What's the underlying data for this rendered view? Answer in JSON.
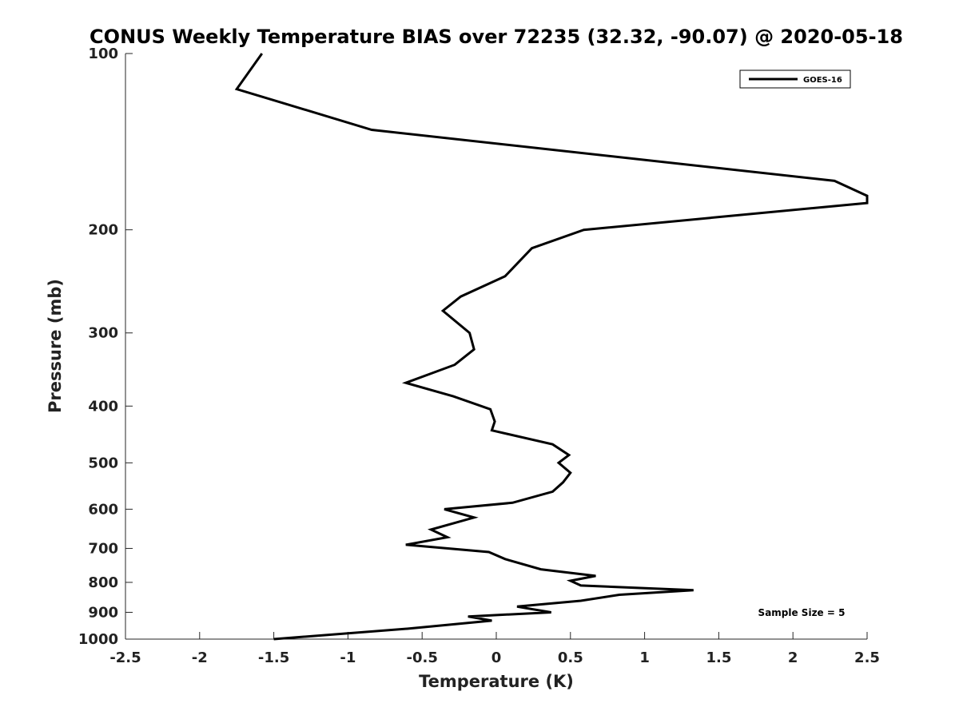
{
  "chart_data": {
    "type": "line",
    "title": "CONUS Weekly Temperature BIAS over 72235 (32.32, -90.07) @ 2020-05-18",
    "xlabel": "Temperature (K)",
    "ylabel": "Pressure (mb)",
    "xlim": [
      -2.5,
      2.5
    ],
    "ylim": [
      100,
      1000
    ],
    "y_scale": "log",
    "y_reversed": true,
    "x_ticks": [
      -2.5,
      -2,
      -1.5,
      -1,
      -0.5,
      0,
      0.5,
      1,
      1.5,
      2,
      2.5
    ],
    "x_tick_labels": [
      "-2.5",
      "-2",
      "-1.5",
      "-1",
      "-0.5",
      "0",
      "0.5",
      "1",
      "1.5",
      "2",
      "2.5"
    ],
    "y_ticks": [
      100,
      200,
      300,
      400,
      500,
      600,
      700,
      800,
      900,
      1000
    ],
    "y_tick_labels": [
      "100",
      "200",
      "300",
      "400",
      "500",
      "600",
      "700",
      "800",
      "900",
      "1000"
    ],
    "grid": false,
    "legend_position": "top-right",
    "series": [
      {
        "name": "GOES-16",
        "color": "#000000",
        "points": [
          [
            -1.58,
            100
          ],
          [
            -1.75,
            115
          ],
          [
            -0.84,
            135
          ],
          [
            2.28,
            165
          ],
          [
            2.5,
            175
          ],
          [
            2.5,
            180
          ],
          [
            0.59,
            200
          ],
          [
            0.24,
            215
          ],
          [
            0.06,
            240
          ],
          [
            -0.24,
            260
          ],
          [
            -0.36,
            275
          ],
          [
            -0.18,
            300
          ],
          [
            -0.15,
            320
          ],
          [
            -0.28,
            340
          ],
          [
            -0.61,
            365
          ],
          [
            -0.29,
            385
          ],
          [
            -0.04,
            405
          ],
          [
            -0.01,
            425
          ],
          [
            -0.03,
            440
          ],
          [
            0.38,
            465
          ],
          [
            0.49,
            485
          ],
          [
            0.42,
            500
          ],
          [
            0.5,
            520
          ],
          [
            0.45,
            540
          ],
          [
            0.38,
            560
          ],
          [
            0.11,
            585
          ],
          [
            -0.35,
            600
          ],
          [
            -0.15,
            620
          ],
          [
            -0.44,
            650
          ],
          [
            -0.33,
            670
          ],
          [
            -0.61,
            690
          ],
          [
            -0.05,
            710
          ],
          [
            0.06,
            730
          ],
          [
            0.3,
            760
          ],
          [
            0.67,
            780
          ],
          [
            0.5,
            795
          ],
          [
            0.57,
            810
          ],
          [
            1.33,
            825
          ],
          [
            0.83,
            840
          ],
          [
            0.57,
            860
          ],
          [
            0.14,
            880
          ],
          [
            0.37,
            900
          ],
          [
            -0.19,
            915
          ],
          [
            -0.03,
            930
          ],
          [
            -0.6,
            960
          ],
          [
            -1.5,
            1000
          ]
        ]
      }
    ],
    "annotation": "Sample Size = 5"
  }
}
